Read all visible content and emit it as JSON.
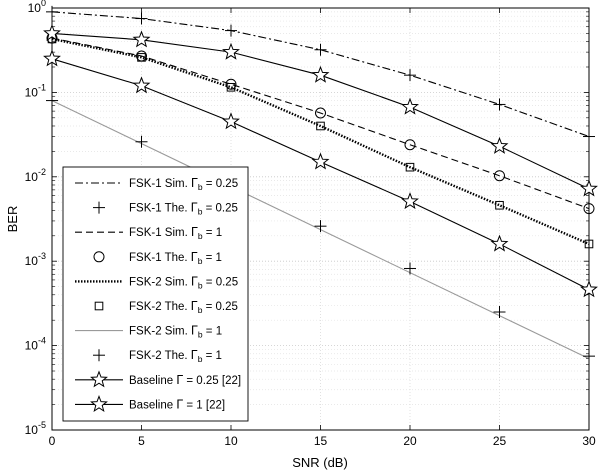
{
  "chart_data": {
    "type": "line",
    "xlabel": "SNR (dB)",
    "ylabel": "BER",
    "xlim": [
      0,
      30
    ],
    "ylim": [
      1e-05,
      1
    ],
    "yscale": "log",
    "grid": true,
    "legend_position": "lower-left",
    "x_ticks": [
      "0",
      "5",
      "10",
      "15",
      "20",
      "25",
      "30"
    ],
    "y_ticks": [
      {
        "base": "10",
        "exp": "0"
      },
      {
        "base": "10",
        "exp": "-1"
      },
      {
        "base": "10",
        "exp": "-2"
      },
      {
        "base": "10",
        "exp": "-3"
      },
      {
        "base": "10",
        "exp": "-4"
      },
      {
        "base": "10",
        "exp": "-5"
      }
    ],
    "x": [
      0,
      5,
      10,
      15,
      20,
      25,
      30
    ],
    "series": [
      {
        "legend": {
          "pre": "FSK-1 Sim. ",
          "sym": "Γ",
          "sub": "b",
          "post": " = 0.25"
        },
        "style": "dashdot",
        "marker": "none",
        "color": "#000000",
        "x": [
          0,
          5,
          10,
          15,
          20,
          25,
          30
        ],
        "values": [
          0.9,
          0.75,
          0.54,
          0.32,
          0.16,
          0.072,
          0.03
        ]
      },
      {
        "legend": {
          "pre": "FSK-1 The. ",
          "sym": "Γ",
          "sub": "b",
          "post": " = 0.25"
        },
        "style": "none",
        "marker": "plus",
        "color": "#000000",
        "x": [
          0,
          5,
          10,
          15,
          20,
          25,
          30
        ],
        "values": [
          0.9,
          0.75,
          0.54,
          0.32,
          0.16,
          0.072,
          0.03
        ]
      },
      {
        "legend": {
          "pre": "FSK-1 Sim. ",
          "sym": "Γ",
          "sub": "b",
          "post": " = 1"
        },
        "style": "dashed",
        "marker": "none",
        "color": "#000000",
        "x": [
          0,
          5,
          10,
          15,
          20,
          25,
          30
        ],
        "values": [
          0.44,
          0.27,
          0.125,
          0.057,
          0.024,
          0.0103,
          0.0042
        ]
      },
      {
        "legend": {
          "pre": "FSK-1 The. ",
          "sym": "Γ",
          "sub": "b",
          "post": " = 1"
        },
        "style": "none",
        "marker": "circle",
        "color": "#000000",
        "x": [
          0,
          5,
          10,
          15,
          20,
          25,
          30
        ],
        "values": [
          0.44,
          0.27,
          0.125,
          0.057,
          0.024,
          0.0103,
          0.0042
        ]
      },
      {
        "legend": {
          "pre": "FSK-2 Sim. ",
          "sym": "Γ",
          "sub": "b",
          "post": " = 0.25"
        },
        "style": "dotted",
        "marker": "none",
        "color": "#000000",
        "x": [
          0,
          5,
          10,
          15,
          20,
          25,
          30
        ],
        "values": [
          0.43,
          0.26,
          0.115,
          0.04,
          0.013,
          0.0046,
          0.0016
        ]
      },
      {
        "legend": {
          "pre": "FSK-2 The. ",
          "sym": "Γ",
          "sub": "b",
          "post": " = 0.25"
        },
        "style": "none",
        "marker": "square",
        "color": "#000000",
        "x": [
          0,
          5,
          10,
          15,
          20,
          25,
          30
        ],
        "values": [
          0.43,
          0.26,
          0.115,
          0.04,
          0.013,
          0.0046,
          0.0016
        ]
      },
      {
        "legend": {
          "pre": "FSK-2 Sim. ",
          "sym": "Γ",
          "sub": "b",
          "post": " = 1"
        },
        "style": "solid",
        "marker": "none",
        "color": "#9a9a9a",
        "x": [
          0,
          30
        ],
        "values": [
          0.08,
          7e-05
        ]
      },
      {
        "legend": {
          "pre": "FSK-2 The. ",
          "sym": "Γ",
          "sub": "b",
          "post": " = 1"
        },
        "style": "none",
        "marker": "plus",
        "color": "#000000",
        "x": [
          0,
          5,
          15,
          20,
          25,
          30
        ],
        "values": [
          0.08,
          0.026,
          0.0026,
          0.00082,
          0.00025,
          7.5e-05
        ]
      },
      {
        "legend": {
          "pre": "Baseline ",
          "sym": "Γ",
          "sub": "",
          "post": " = 0.25 [22]"
        },
        "style": "solid",
        "marker": "star",
        "color": "#000000",
        "x": [
          0,
          5,
          10,
          15,
          20,
          25,
          30
        ],
        "values": [
          0.5,
          0.42,
          0.3,
          0.16,
          0.067,
          0.023,
          0.0072
        ]
      },
      {
        "legend": {
          "pre": "Baseline ",
          "sym": "Γ",
          "sub": "",
          "post": " = 1 [22]"
        },
        "style": "solid",
        "marker": "star",
        "color": "#000000",
        "x": [
          0,
          5,
          10,
          15,
          20,
          25,
          30
        ],
        "values": [
          0.25,
          0.12,
          0.045,
          0.015,
          0.0051,
          0.0016,
          0.00046
        ]
      }
    ]
  }
}
